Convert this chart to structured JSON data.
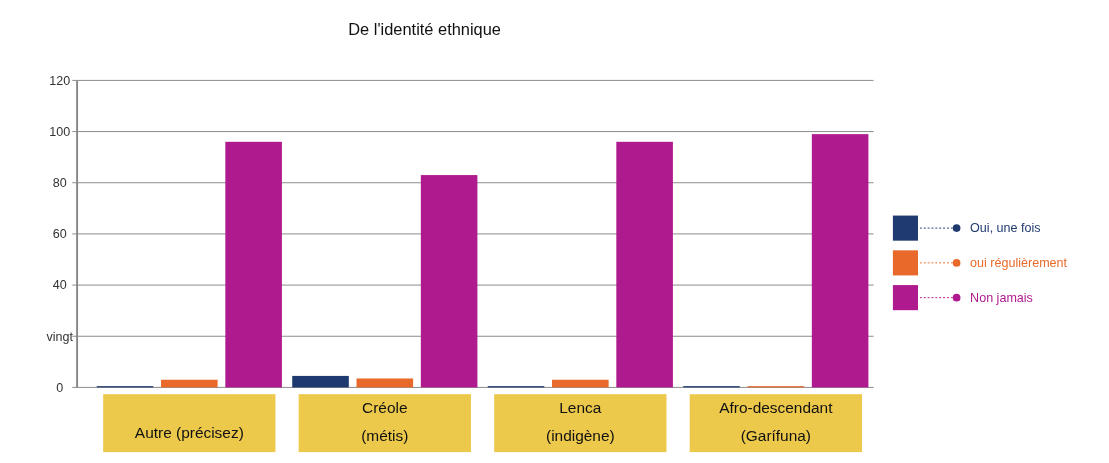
{
  "chart_data": {
    "type": "bar",
    "title": "De l'identité ethnique",
    "categories": [
      "Autre (précisez)",
      "Créole\n(métis)",
      "Lenca\n(indigène)",
      "Afro-descendant\n(Garífuna)"
    ],
    "series": [
      {
        "name": "Oui, une fois",
        "color": "#1f3a6e",
        "values": [
          0.5,
          4.5,
          0.5,
          0.5
        ]
      },
      {
        "name": "oui régulièrement",
        "color": "#e8692a",
        "values": [
          3,
          3.5,
          3,
          0.5
        ]
      },
      {
        "name": "Non jamais",
        "color": "#b01a8f",
        "values": [
          96,
          83,
          96,
          99
        ]
      }
    ],
    "ylim": [
      0,
      120
    ],
    "yticks": [
      0,
      {
        "value": 20,
        "label": "vingt"
      },
      40,
      60,
      80,
      100,
      120
    ],
    "grid": "y",
    "legend": "right"
  }
}
